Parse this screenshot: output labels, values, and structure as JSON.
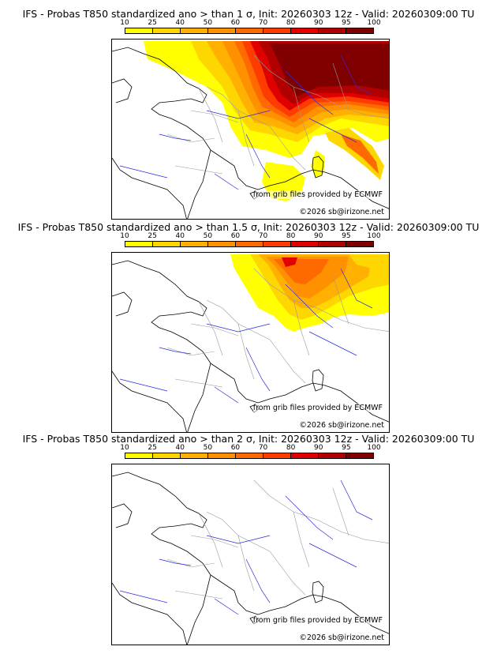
{
  "colorbar": {
    "ticks": [
      "10",
      "25",
      "40",
      "50",
      "60",
      "70",
      "80",
      "90",
      "95",
      "100"
    ],
    "colors": [
      "#ffff00",
      "#ffd700",
      "#ffb000",
      "#ff9000",
      "#ff6a00",
      "#ff3c00",
      "#e00000",
      "#b00000",
      "#800000"
    ]
  },
  "panels": [
    {
      "title": "IFS - Probas T850  standardized ano > than 1 σ, Init: 20260303 12z - Valid: 20260309:00 TU",
      "credit_source": "from grib files provided by ECMWF",
      "credit_copyright": "©2026 sb@irizone.net"
    },
    {
      "title": "IFS - Probas T850  standardized ano > than 1.5 σ, Init: 20260303 12z - Valid: 20260309:00 TU",
      "credit_source": "from grib files provided by ECMWF",
      "credit_copyright": "©2026 sb@irizone.net"
    },
    {
      "title": "IFS - Probas T850  standardized ano > than 2 σ, Init: 20260303 12z - Valid: 20260309:00 TU",
      "credit_source": "from grib files provided by ECMWF",
      "credit_copyright": "©2026 sb@irizone.net"
    }
  ]
}
